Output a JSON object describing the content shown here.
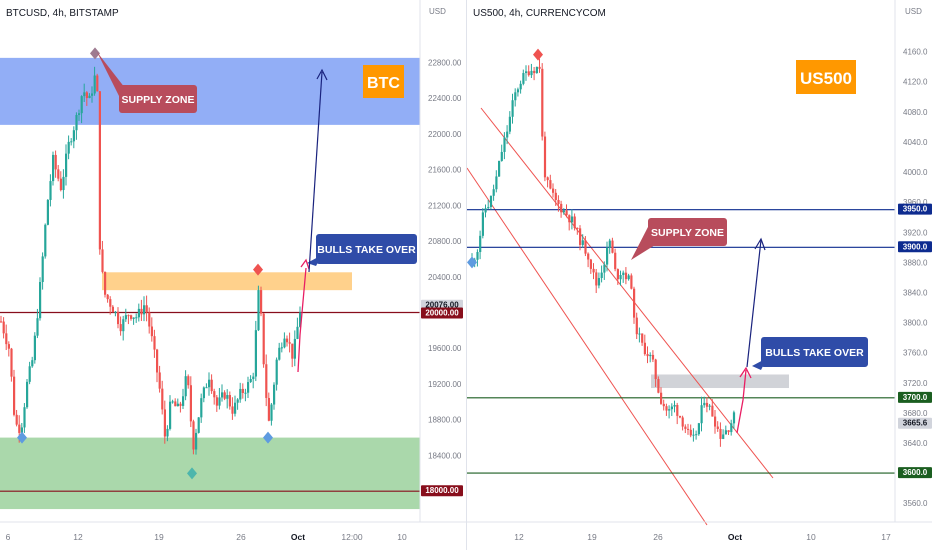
{
  "charts": [
    {
      "id": "btc",
      "symbol_line": "BTCUSD, 4h, BITSTAMP",
      "currency": "USD",
      "badge": {
        "text": "BTC",
        "color": "#ff9800"
      },
      "y_ticks": [
        "22800.00",
        "22400.00",
        "22000.00",
        "21600.00",
        "21200.00",
        "20800.00",
        "20400.00",
        "19600.00",
        "19200.00",
        "18800.00",
        "18400.00"
      ],
      "x_ticks": [
        "6",
        "12",
        "19",
        "26",
        "Oct",
        "12:00",
        "10"
      ],
      "price_labels": [
        {
          "text": "20076.00",
          "bg": "#d1d4dc",
          "color": "#131722"
        },
        {
          "text": "20000.00",
          "bg": "#880e1c",
          "color": "#ffffff"
        },
        {
          "text": "18000.00",
          "bg": "#880e1c",
          "color": "#ffffff"
        }
      ],
      "annotations": {
        "supply": "SUPPLY ZONE",
        "bulls": "BULLS TAKE OVER"
      }
    },
    {
      "id": "us500",
      "symbol_line": "US500, 4h, CURRENCYCOM",
      "currency": "USD",
      "badge": {
        "text": "US500",
        "color": "#ff9800"
      },
      "y_ticks": [
        "4200.0",
        "4160.0",
        "4120.0",
        "4080.0",
        "4040.0",
        "4000.0",
        "3960.0",
        "3920.0",
        "3880.0",
        "3840.0",
        "3800.0",
        "3760.0",
        "3720.0",
        "3680.0",
        "3640.0",
        "3600.0",
        "3560.0"
      ],
      "x_ticks": [
        "12",
        "19",
        "26",
        "Oct",
        "10",
        "17"
      ],
      "price_labels": [
        {
          "text": "3950.0",
          "bg": "#0d2b8f",
          "color": "#ffffff"
        },
        {
          "text": "3900.0",
          "bg": "#0d2b8f",
          "color": "#ffffff"
        },
        {
          "text": "3700.0",
          "bg": "#1b5e20",
          "color": "#ffffff"
        },
        {
          "text": "3665.6",
          "bg": "#d1d4dc",
          "color": "#131722"
        },
        {
          "text": "3600.0",
          "bg": "#1b5e20",
          "color": "#ffffff"
        }
      ],
      "annotations": {
        "supply": "SUPPLY ZONE",
        "bulls": "BULLS TAKE OVER"
      }
    }
  ],
  "chart_data": [
    {
      "type": "candlestick",
      "title": "BTCUSD, 4h, BITSTAMP",
      "ylim": [
        17700,
        23050
      ],
      "close_path": [
        [
          0,
          19900
        ],
        [
          8,
          19600
        ],
        [
          14,
          18750
        ],
        [
          20,
          18700
        ],
        [
          26,
          19200
        ],
        [
          32,
          19500
        ],
        [
          40,
          20400
        ],
        [
          46,
          21200
        ],
        [
          52,
          21700
        ],
        [
          60,
          21400
        ],
        [
          68,
          21900
        ],
        [
          76,
          22200
        ],
        [
          82,
          22500
        ],
        [
          88,
          22350
        ],
        [
          95,
          22700
        ],
        [
          97,
          22250
        ],
        [
          99,
          20600
        ],
        [
          104,
          20200
        ],
        [
          112,
          20050
        ],
        [
          120,
          19850
        ],
        [
          128,
          20000
        ],
        [
          136,
          19950
        ],
        [
          144,
          20100
        ],
        [
          150,
          19750
        ],
        [
          158,
          19200
        ],
        [
          164,
          18600
        ],
        [
          170,
          19000
        ],
        [
          178,
          18900
        ],
        [
          186,
          19300
        ],
        [
          192,
          18500
        ],
        [
          200,
          19000
        ],
        [
          208,
          19300
        ],
        [
          216,
          18950
        ],
        [
          224,
          19100
        ],
        [
          232,
          18900
        ],
        [
          240,
          19100
        ],
        [
          248,
          19200
        ],
        [
          252,
          19300
        ],
        [
          258,
          20300
        ],
        [
          264,
          19200
        ],
        [
          268,
          18750
        ],
        [
          276,
          19500
        ],
        [
          284,
          19800
        ],
        [
          292,
          19500
        ],
        [
          300,
          20100
        ]
      ],
      "levels": [
        20000,
        18000
      ],
      "supply_zone": [
        22100,
        22850
      ],
      "demand_zone": [
        17800,
        18600
      ],
      "resistance_box": [
        20250,
        20450
      ]
    },
    {
      "type": "candlestick",
      "title": "US500, 4h, CURRENCYCOM",
      "ylim": [
        3535,
        4210
      ],
      "close_path": [
        [
          0,
          3880
        ],
        [
          6,
          3900
        ],
        [
          12,
          3950
        ],
        [
          18,
          3960
        ],
        [
          24,
          3990
        ],
        [
          30,
          4030
        ],
        [
          36,
          4060
        ],
        [
          42,
          4100
        ],
        [
          48,
          4120
        ],
        [
          56,
          4135
        ],
        [
          68,
          4140
        ],
        [
          71,
          4010
        ],
        [
          76,
          3980
        ],
        [
          84,
          3960
        ],
        [
          94,
          3945
        ],
        [
          100,
          3935
        ],
        [
          108,
          3910
        ],
        [
          116,
          3890
        ],
        [
          124,
          3850
        ],
        [
          132,
          3880
        ],
        [
          138,
          3910
        ],
        [
          144,
          3860
        ],
        [
          150,
          3870
        ],
        [
          160,
          3850
        ],
        [
          162,
          3800
        ],
        [
          170,
          3770
        ],
        [
          180,
          3750
        ],
        [
          188,
          3700
        ],
        [
          196,
          3680
        ],
        [
          202,
          3690
        ],
        [
          210,
          3670
        ],
        [
          220,
          3640
        ],
        [
          226,
          3660
        ],
        [
          232,
          3700
        ],
        [
          240,
          3680
        ],
        [
          248,
          3650
        ],
        [
          256,
          3660
        ],
        [
          264,
          3680
        ]
      ],
      "levels": [
        3950,
        3900,
        3700,
        3600
      ],
      "last_price": 3665.6,
      "resistance_box": [
        3713,
        3731
      ]
    }
  ]
}
